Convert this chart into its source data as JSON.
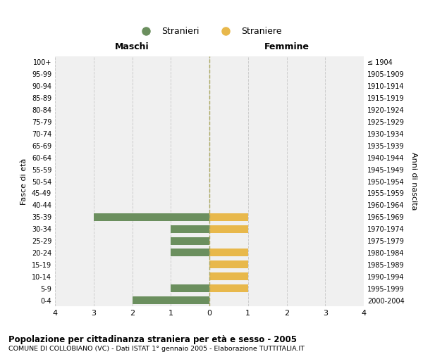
{
  "age_groups": [
    "100+",
    "95-99",
    "90-94",
    "85-89",
    "80-84",
    "75-79",
    "70-74",
    "65-69",
    "60-64",
    "55-59",
    "50-54",
    "45-49",
    "40-44",
    "35-39",
    "30-34",
    "25-29",
    "20-24",
    "15-19",
    "10-14",
    "5-9",
    "0-4"
  ],
  "birth_years": [
    "≤ 1904",
    "1905-1909",
    "1910-1914",
    "1915-1919",
    "1920-1924",
    "1925-1929",
    "1930-1934",
    "1935-1939",
    "1940-1944",
    "1945-1949",
    "1950-1954",
    "1955-1959",
    "1960-1964",
    "1965-1969",
    "1970-1974",
    "1975-1979",
    "1980-1984",
    "1985-1989",
    "1990-1994",
    "1995-1999",
    "2000-2004"
  ],
  "males": [
    0,
    0,
    0,
    0,
    0,
    0,
    0,
    0,
    0,
    0,
    0,
    0,
    0,
    -3,
    -1,
    -1,
    -1,
    0,
    0,
    -1,
    -2
  ],
  "females": [
    0,
    0,
    0,
    0,
    0,
    0,
    0,
    0,
    0,
    0,
    0,
    0,
    0,
    1,
    1,
    0,
    1,
    1,
    1,
    1,
    0
  ],
  "male_color": "#6b8f5e",
  "female_color": "#e8b84b",
  "grid_color": "#cccccc",
  "axis_bg": "#f0f0f0",
  "title1": "Popolazione per cittadinanza straniera per età e sesso - 2005",
  "title2": "COMUNE DI COLLOBIANO (VC) - Dati ISTAT 1° gennaio 2005 - Elaborazione TUTTITALIA.IT",
  "legend_male": "Stranieri",
  "legend_female": "Straniere",
  "xlabel_left": "Maschi",
  "xlabel_right": "Femmine",
  "ylabel_left": "Fasce di età",
  "ylabel_right": "Anni di nascita",
  "xlim": [
    -4,
    4
  ],
  "xticks": [
    -4,
    -3,
    -2,
    -1,
    0,
    1,
    2,
    3,
    4
  ],
  "xticklabels": [
    "4",
    "3",
    "2",
    "1",
    "0",
    "1",
    "2",
    "3",
    "4"
  ]
}
